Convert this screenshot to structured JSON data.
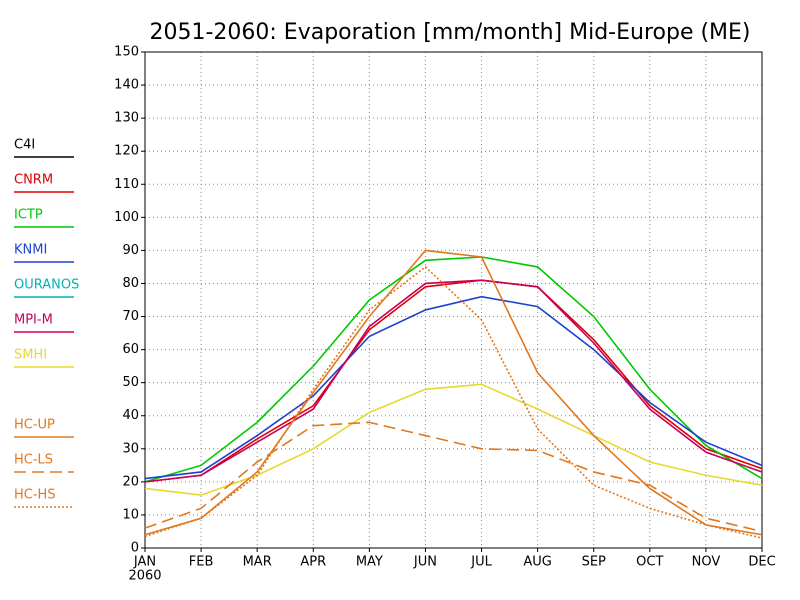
{
  "chart_data": {
    "type": "line",
    "title": "2051-2060: Evaporation [mm/month] Mid-Europe (ME)",
    "categories": [
      "JAN",
      "FEB",
      "MAR",
      "APR",
      "MAY",
      "JUN",
      "JUL",
      "AUG",
      "SEP",
      "OCT",
      "NOV",
      "DEC"
    ],
    "year_label": "2060",
    "ylim": [
      0,
      150
    ],
    "yticks": [
      0,
      10,
      20,
      30,
      40,
      50,
      60,
      70,
      80,
      90,
      100,
      110,
      120,
      130,
      140,
      150
    ],
    "grid": true,
    "legend": "left",
    "series": [
      {
        "name": "C4I",
        "color": "#000000",
        "dash": "solid",
        "values": [
          null,
          null,
          null,
          null,
          null,
          null,
          null,
          null,
          null,
          null,
          null,
          null
        ]
      },
      {
        "name": "CNRM",
        "color": "#e00000",
        "dash": "solid",
        "values": [
          20,
          22,
          33,
          43,
          66,
          79,
          81,
          79,
          63,
          43,
          30,
          24
        ]
      },
      {
        "name": "ICTP",
        "color": "#00c800",
        "dash": "solid",
        "values": [
          20,
          25,
          38,
          55,
          75,
          87,
          88,
          85,
          70,
          48,
          31,
          21
        ]
      },
      {
        "name": "KNMI",
        "color": "#2040d0",
        "dash": "solid",
        "values": [
          21,
          23,
          34,
          46,
          64,
          72,
          76,
          73,
          60,
          44,
          32,
          25
        ]
      },
      {
        "name": "OURANOS",
        "color": "#00b4b4",
        "dash": "solid",
        "values": [
          null,
          null,
          null,
          null,
          null,
          null,
          null,
          null,
          null,
          null,
          null,
          null
        ]
      },
      {
        "name": "MPI-M",
        "color": "#c8005a",
        "dash": "solid",
        "values": [
          20,
          22,
          32,
          42,
          67,
          80,
          81,
          79,
          62,
          42,
          29,
          23
        ]
      },
      {
        "name": "SMHI",
        "color": "#e8d830",
        "dash": "solid",
        "values": [
          18,
          16,
          22,
          30,
          41,
          48,
          49.5,
          42,
          34,
          26,
          22,
          19
        ]
      },
      {
        "name": "HC-UP",
        "color": "#e07820",
        "dash": "solid",
        "values": [
          4,
          9,
          23,
          47,
          70,
          90,
          88,
          53,
          34,
          18,
          7,
          4
        ]
      },
      {
        "name": "HC-LS",
        "color": "#e07820",
        "dash": "dashed",
        "values": [
          6,
          12,
          26,
          37,
          38,
          34,
          30,
          29.5,
          23,
          19,
          9,
          5
        ]
      },
      {
        "name": "HC-HS",
        "color": "#e07820",
        "dash": "dotted",
        "values": [
          3.5,
          9,
          22,
          48,
          72,
          85,
          69,
          36,
          19,
          12,
          7,
          3
        ]
      }
    ]
  }
}
